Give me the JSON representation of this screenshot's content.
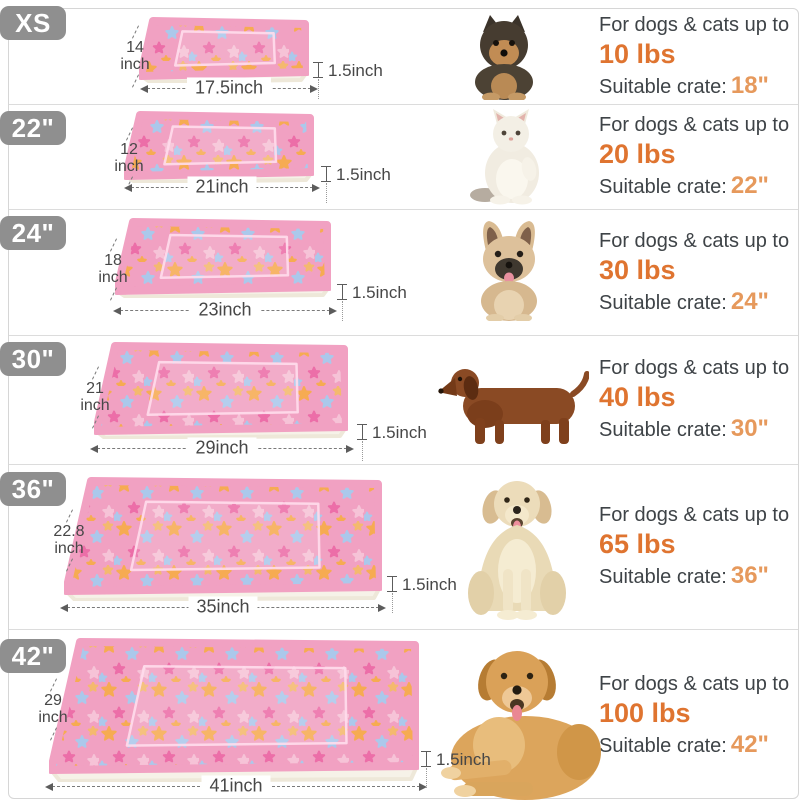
{
  "title": "Pet bed mat size guide",
  "colors": {
    "accent_orange": "#df7430",
    "crate_orange": "#e6995c",
    "text_dark": "#3e4347",
    "badge_gray": "#8f8f8f",
    "mat_pink": "#f1a1c2",
    "mat_base_white": "#f6f2e8"
  },
  "rows": [
    {
      "badge": "XS",
      "height": "14",
      "unit": "inch",
      "width": "17.5inch",
      "thickness": "1.5inch",
      "pet": "yorkshire-terrier-puppy",
      "line1": "For dogs & cats up to",
      "weight": "10 lbs",
      "crate_prefix": "Suitable crate:",
      "crate": "18\""
    },
    {
      "badge": "22\"",
      "height": "12",
      "unit": "inch",
      "width": "21inch",
      "thickness": "1.5inch",
      "pet": "white-fluffy-cat",
      "line1": "For dogs & cats up to",
      "weight": "20 lbs",
      "crate_prefix": "Suitable crate:",
      "crate": "22\""
    },
    {
      "badge": "24\"",
      "height": "18",
      "unit": "inch",
      "width": "23inch",
      "thickness": "1.5inch",
      "pet": "french-bulldog",
      "line1": "For dogs & cats up to",
      "weight": "30 lbs",
      "crate_prefix": "Suitable crate:",
      "crate": "24\""
    },
    {
      "badge": "30\"",
      "height": "21",
      "unit": "inch",
      "width": "29inch",
      "thickness": "1.5inch",
      "pet": "dachshund",
      "line1": "For dogs & cats up to",
      "weight": "40 lbs",
      "crate_prefix": "Suitable crate:",
      "crate": "30\""
    },
    {
      "badge": "36\"",
      "height": "22.8",
      "unit": "inch",
      "width": "35inch",
      "thickness": "1.5inch",
      "pet": "golden-retriever-sitting",
      "line1": "For dogs & cats up to",
      "weight": "65 lbs",
      "crate_prefix": "Suitable crate:",
      "crate": "36\""
    },
    {
      "badge": "42\"",
      "height": "29",
      "unit": "inch",
      "width": "41inch",
      "thickness": "1.5inch",
      "pet": "golden-retriever-lying",
      "line1": "For dogs & cats up to",
      "weight": "100 lbs",
      "crate_prefix": "Suitable crate:",
      "crate": "42\""
    }
  ]
}
